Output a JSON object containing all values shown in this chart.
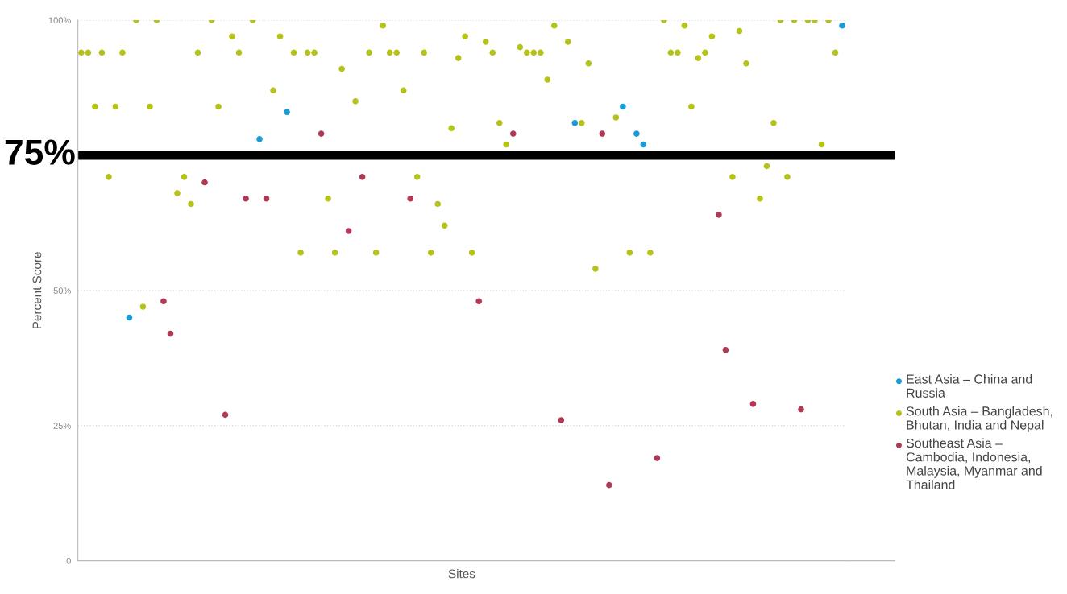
{
  "chart_data": {
    "type": "scatter",
    "categories": [
      null,
      null,
      null,
      null,
      null,
      null,
      null,
      null,
      null,
      null,
      null,
      null,
      null,
      null,
      null,
      null,
      null,
      null,
      null,
      null,
      null,
      null,
      null,
      null,
      null,
      null,
      null,
      null,
      null,
      null,
      null,
      null,
      null,
      null,
      null,
      null,
      null,
      null,
      null,
      null,
      null,
      null,
      null,
      null,
      null,
      null,
      null,
      null,
      null,
      null,
      null,
      null,
      null,
      null,
      null,
      null,
      null,
      null,
      null,
      null,
      null,
      null,
      null,
      null,
      null,
      null,
      null,
      null,
      null,
      null,
      null,
      null,
      null,
      null,
      null,
      null,
      null,
      null,
      null,
      null,
      null,
      null,
      null,
      null,
      null,
      null,
      null,
      null,
      null,
      null,
      null,
      null,
      null,
      null,
      null,
      null,
      null,
      null,
      null,
      null,
      null,
      null,
      null,
      null,
      null,
      null,
      null,
      null,
      null,
      null,
      null,
      null
    ],
    "series": [
      {
        "name": "East Asia – China and Russia",
        "color": "#1a9ad6",
        "values": [
          null,
          null,
          null,
          null,
          null,
          null,
          null,
          45,
          null,
          null,
          null,
          null,
          null,
          null,
          null,
          null,
          null,
          null,
          null,
          null,
          null,
          null,
          null,
          null,
          null,
          null,
          78,
          null,
          null,
          null,
          83,
          null,
          null,
          null,
          null,
          null,
          null,
          null,
          null,
          null,
          null,
          null,
          null,
          null,
          null,
          null,
          null,
          null,
          null,
          null,
          null,
          null,
          null,
          null,
          null,
          null,
          null,
          null,
          null,
          null,
          null,
          null,
          null,
          null,
          null,
          null,
          null,
          null,
          null,
          null,
          null,
          null,
          81,
          null,
          null,
          null,
          null,
          null,
          null,
          84,
          null,
          79,
          77,
          null,
          null,
          null,
          null,
          null,
          null,
          null,
          null,
          null,
          null,
          null,
          null,
          null,
          null,
          null,
          null,
          null,
          null,
          null,
          null,
          null,
          null,
          null,
          null,
          null,
          null,
          null,
          null,
          99
        ]
      },
      {
        "name": "South Asia – Bangladesh, Bhutan, India and Nepal",
        "color": "#b5c219",
        "values": [
          94,
          94,
          84,
          94,
          71,
          84,
          94,
          null,
          100,
          47,
          84,
          100,
          null,
          null,
          68,
          71,
          66,
          94,
          null,
          100,
          84,
          null,
          97,
          94,
          null,
          100,
          null,
          null,
          87,
          97,
          null,
          94,
          57,
          94,
          94,
          null,
          67,
          57,
          91,
          null,
          85,
          null,
          94,
          57,
          99,
          94,
          94,
          87,
          null,
          71,
          94,
          57,
          66,
          62,
          80,
          93,
          97,
          57,
          null,
          96,
          94,
          81,
          77,
          null,
          95,
          94,
          94,
          94,
          89,
          99,
          null,
          96,
          null,
          81,
          92,
          54,
          null,
          null,
          82,
          null,
          57,
          null,
          null,
          57,
          null,
          100,
          94,
          94,
          99,
          84,
          93,
          94,
          97,
          null,
          null,
          71,
          98,
          92,
          null,
          67,
          73,
          81,
          100,
          71,
          100,
          null,
          100,
          100,
          77,
          100,
          94,
          null
        ]
      },
      {
        "name": "Southeast Asia – Cambodia, Indonesia, Malaysia, Myanmar and Thailand",
        "color": "#b03a55",
        "values": [
          null,
          null,
          null,
          null,
          null,
          null,
          null,
          null,
          null,
          null,
          null,
          null,
          48,
          42,
          null,
          null,
          null,
          null,
          70,
          null,
          null,
          27,
          null,
          null,
          67,
          null,
          null,
          67,
          null,
          null,
          null,
          null,
          null,
          null,
          null,
          79,
          null,
          null,
          null,
          61,
          null,
          71,
          null,
          null,
          null,
          null,
          null,
          null,
          67,
          null,
          null,
          null,
          null,
          null,
          null,
          null,
          null,
          null,
          48,
          null,
          null,
          null,
          null,
          79,
          null,
          null,
          null,
          null,
          null,
          null,
          26,
          null,
          null,
          null,
          null,
          null,
          79,
          14,
          null,
          null,
          null,
          null,
          null,
          null,
          19,
          null,
          null,
          null,
          null,
          null,
          null,
          null,
          null,
          64,
          39,
          null,
          null,
          null,
          29,
          null,
          null,
          null,
          null,
          null,
          null,
          28,
          null,
          null,
          null,
          null,
          null,
          null
        ]
      }
    ],
    "xlabel": "Sites",
    "ylabel": "Percent Score",
    "ylim": [
      0,
      100
    ],
    "yticks": [
      {
        "value": 0,
        "label": "0"
      },
      {
        "value": 25,
        "label": "25%"
      },
      {
        "value": 50,
        "label": "50%"
      },
      {
        "value": 100,
        "label": "100%"
      }
    ],
    "ref_lines": [
      {
        "axis": "y",
        "value": 75,
        "label": "75%",
        "color": "#000000"
      }
    ],
    "grid": "y",
    "legend": "right",
    "marker": "circle"
  }
}
